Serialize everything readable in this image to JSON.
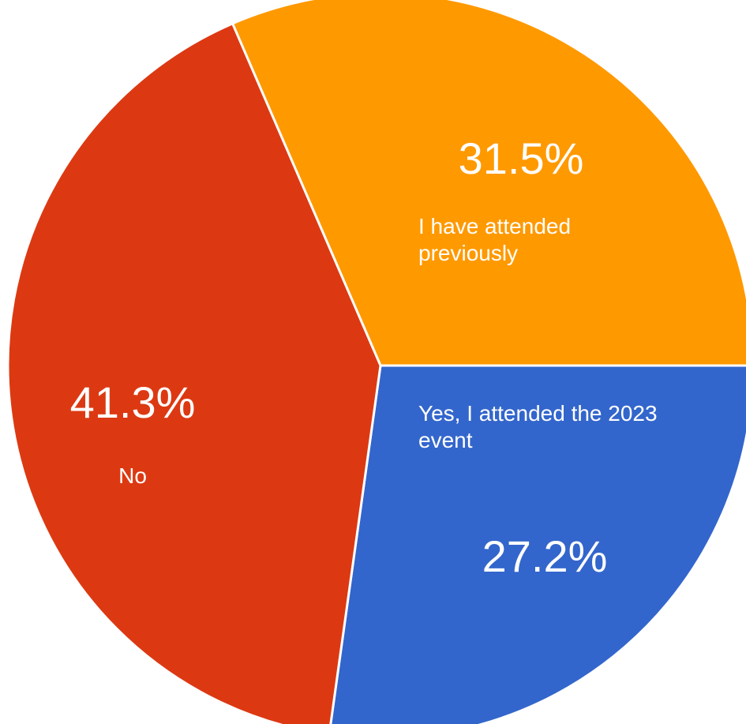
{
  "chart_data": {
    "type": "pie",
    "title": "",
    "slices": [
      {
        "label": "I have attended previously",
        "value": 31.5,
        "display": "31.5%",
        "color": "#ff9900"
      },
      {
        "label": "Yes, I attended the 2023 event",
        "value": 27.2,
        "display": "27.2%",
        "color": "#3366cc"
      },
      {
        "label": "No",
        "value": 41.3,
        "display": "41.3%",
        "color": "#dc3912"
      }
    ],
    "legend": "none",
    "slice_border_color": "#ffffff"
  }
}
